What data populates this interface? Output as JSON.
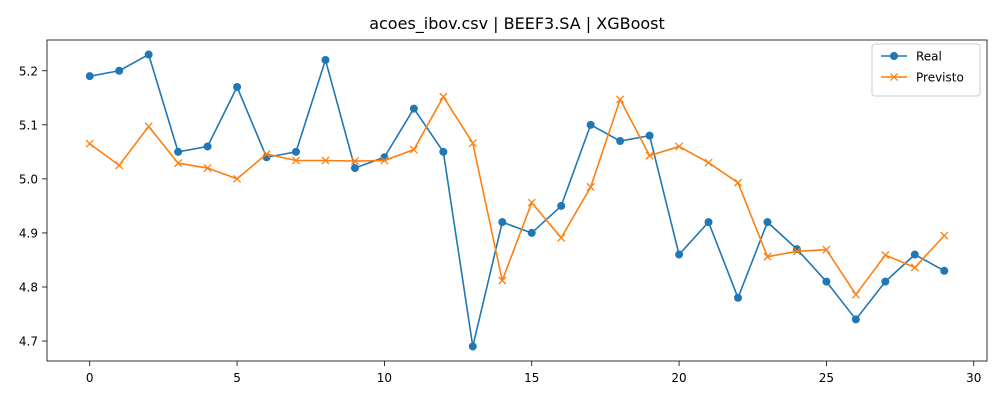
{
  "chart_data": {
    "type": "line",
    "title": "acoes_ibov.csv | BEEF3.SA | XGBoost",
    "xlabel": "",
    "ylabel": "",
    "x": [
      0,
      1,
      2,
      3,
      4,
      5,
      6,
      7,
      8,
      9,
      10,
      11,
      12,
      13,
      14,
      15,
      16,
      17,
      18,
      19,
      20,
      21,
      22,
      23,
      24,
      25,
      26,
      27,
      28,
      29
    ],
    "xlim": [
      -1.45,
      30.45
    ],
    "ylim": [
      4.6631,
      5.2569
    ],
    "xticks": [
      0,
      5,
      10,
      15,
      20,
      25,
      30
    ],
    "xtick_labels": [
      "0",
      "5",
      "10",
      "15",
      "20",
      "25",
      "30"
    ],
    "yticks": [
      4.7,
      4.8,
      4.9,
      5.0,
      5.1,
      5.2
    ],
    "ytick_labels": [
      "4.7",
      "4.8",
      "4.9",
      "5.0",
      "5.1",
      "5.2"
    ],
    "grid": false,
    "legend_position": "top-right",
    "series": [
      {
        "name": "Real",
        "color": "#1f77b4",
        "marker": "circle",
        "values": [
          5.19,
          5.2,
          5.23,
          5.05,
          5.06,
          5.17,
          5.04,
          5.05,
          5.22,
          5.02,
          5.04,
          5.13,
          5.05,
          4.69,
          4.92,
          4.9,
          4.95,
          5.1,
          5.07,
          5.08,
          4.86,
          4.92,
          4.78,
          4.92,
          4.87,
          4.81,
          4.74,
          4.81,
          4.86,
          4.83
        ]
      },
      {
        "name": "Previsto",
        "color": "#ff7f0e",
        "marker": "x",
        "values": [
          5.065,
          5.025,
          5.097,
          5.029,
          5.02,
          5.0,
          5.046,
          5.034,
          5.034,
          5.033,
          5.034,
          5.054,
          5.152,
          5.066,
          4.812,
          4.956,
          4.891,
          4.985,
          5.147,
          5.043,
          5.06,
          5.03,
          4.993,
          4.856,
          4.866,
          4.869,
          4.786,
          4.859,
          4.836,
          4.895
        ]
      }
    ]
  }
}
